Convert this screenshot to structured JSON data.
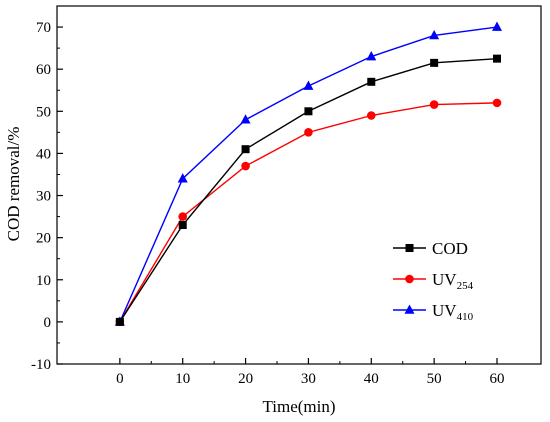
{
  "chart_data": {
    "type": "line",
    "xlabel": "Time(min)",
    "ylabel": "COD removal/%",
    "x": [
      0,
      10,
      20,
      30,
      40,
      50,
      60
    ],
    "xlim": [
      -10,
      67
    ],
    "ylim": [
      -10,
      75
    ],
    "xticks": [
      "0",
      "10",
      "20",
      "30",
      "40",
      "50",
      "60"
    ],
    "yticks": [
      "-10",
      "0",
      "10",
      "20",
      "30",
      "40",
      "50",
      "60",
      "70"
    ],
    "legend_position": "bottom-right",
    "grid": false,
    "series": [
      {
        "name": "COD",
        "name_main": "COD",
        "name_sub": "",
        "color": "#000000",
        "marker": "square",
        "values": [
          0,
          23,
          41,
          50,
          57,
          61.5,
          62.5
        ]
      },
      {
        "name": "UV254",
        "name_main": "UV",
        "name_sub": "254",
        "color": "#ff0000",
        "marker": "circle",
        "values": [
          0,
          25,
          37,
          45,
          49,
          51.6,
          52
        ]
      },
      {
        "name": "UV410",
        "name_main": "UV",
        "name_sub": "410",
        "color": "#0000ff",
        "marker": "triangle",
        "values": [
          0,
          34,
          48,
          56,
          63,
          68,
          70
        ]
      }
    ]
  }
}
